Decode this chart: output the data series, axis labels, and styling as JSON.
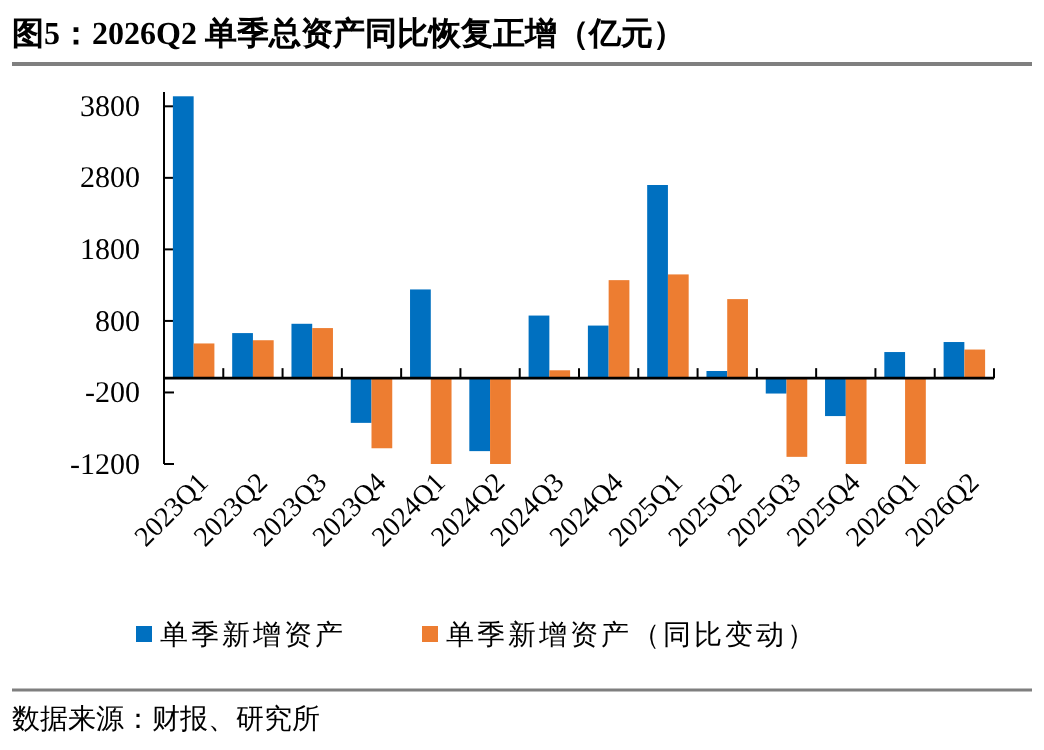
{
  "chart_data": {
    "type": "bar",
    "title": "图5：2026Q2 单季总资产同比恢复正增（亿元）",
    "categories": [
      "2023Q1",
      "2023Q2",
      "2023Q3",
      "2023Q4",
      "2024Q1",
      "2024Q2",
      "2024Q3",
      "2024Q4",
      "2025Q1",
      "2025Q2",
      "2025Q3",
      "2025Q4",
      "2026Q1",
      "2026Q2"
    ],
    "series": [
      {
        "name": "单季新增资产",
        "color": "#0070c0",
        "values": [
          3940,
          630,
          760,
          -625,
          1240,
          -1020,
          875,
          735,
          2700,
          100,
          -215,
          -530,
          365,
          505
        ]
      },
      {
        "name": "单季新增资产（同比变动）",
        "color": "#ed7d31",
        "values": [
          485,
          530,
          700,
          -980,
          -1200,
          -1200,
          110,
          1370,
          1450,
          1105,
          -1100,
          -1200,
          -1200,
          400
        ]
      }
    ],
    "ylim": [
      -1200,
      4000
    ],
    "yticks": [
      -1200,
      -200,
      800,
      1800,
      2800,
      3800
    ],
    "grid": false,
    "legend": "bottom",
    "annotations": [
      "数据来源：财报、研究所"
    ]
  }
}
